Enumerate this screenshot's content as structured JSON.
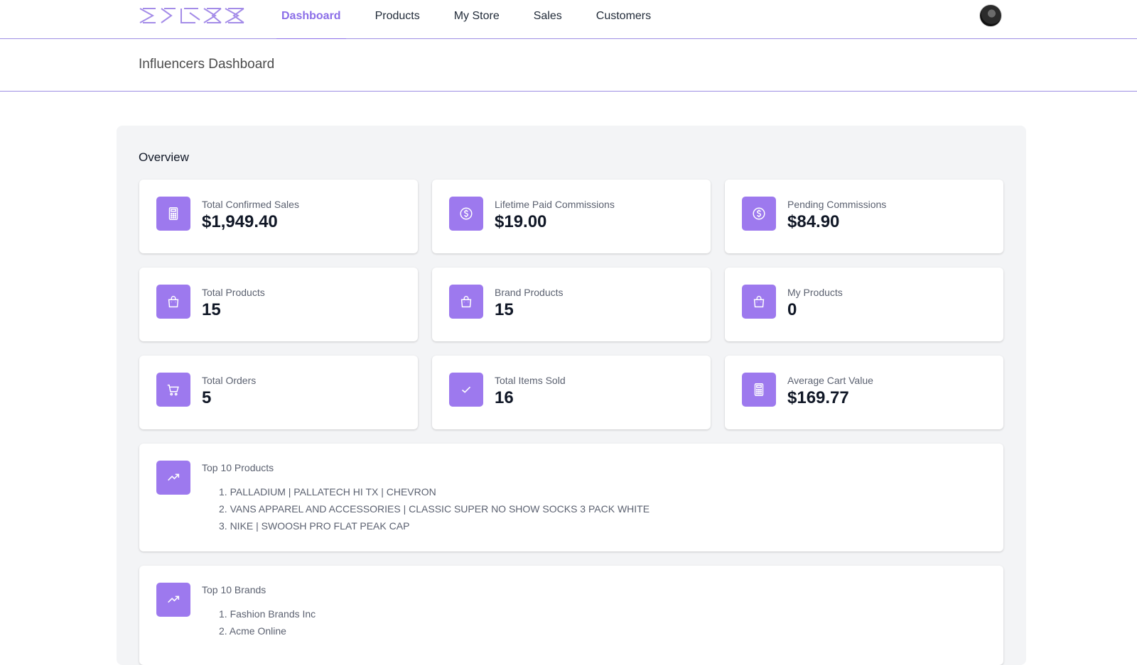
{
  "nav": {
    "items": [
      {
        "label": "Dashboard",
        "active": true
      },
      {
        "label": "Products",
        "active": false
      },
      {
        "label": "My Store",
        "active": false
      },
      {
        "label": "Sales",
        "active": false
      },
      {
        "label": "Customers",
        "active": false
      }
    ]
  },
  "page": {
    "title": "Influencers Dashboard"
  },
  "overview": {
    "title": "Overview",
    "stats": [
      {
        "label": "Total Confirmed Sales",
        "value": "$1,949.40",
        "icon": "calculator-icon"
      },
      {
        "label": "Lifetime Paid Commissions",
        "value": "$19.00",
        "icon": "dollar-circle-icon"
      },
      {
        "label": "Pending Commissions",
        "value": "$84.90",
        "icon": "dollar-circle-icon"
      },
      {
        "label": "Total Products",
        "value": "15",
        "icon": "shopping-bag-icon"
      },
      {
        "label": "Brand Products",
        "value": "15",
        "icon": "shopping-bag-icon"
      },
      {
        "label": "My Products",
        "value": "0",
        "icon": "shopping-bag-icon"
      },
      {
        "label": "Total Orders",
        "value": "5",
        "icon": "shopping-cart-icon"
      },
      {
        "label": "Total Items Sold",
        "value": "16",
        "icon": "check-icon"
      },
      {
        "label": "Average Cart Value",
        "value": "$169.77",
        "icon": "calculator-icon"
      }
    ],
    "top_products": {
      "label": "Top 10 Products",
      "icon": "trending-up-icon",
      "items": [
        "1. PALLADIUM | PALLATECH HI TX | CHEVRON",
        "2. VANS APPAREL AND ACCESSORIES | CLASSIC SUPER NO SHOW SOCKS 3 PACK WHITE",
        "3. NIKE | SWOOSH PRO FLAT PEAK CAP"
      ]
    },
    "top_brands": {
      "label": "Top 10 Brands",
      "icon": "trending-up-icon",
      "items": [
        "1. Fashion Brands Inc",
        "2. Acme Online"
      ]
    }
  },
  "colors": {
    "accent": "#9d79ee",
    "nav_active": "#8b6ee8",
    "panel_bg": "#f3f4f6"
  }
}
